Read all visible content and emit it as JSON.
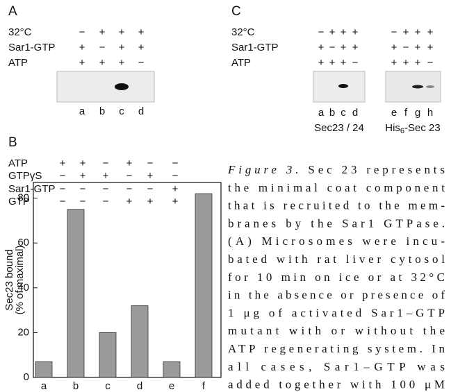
{
  "panel_a": {
    "label": "A",
    "rows": [
      {
        "label": "32°C",
        "marks": [
          "−",
          "+",
          "+",
          "+"
        ]
      },
      {
        "label": "Sar1-GTP",
        "marks": [
          "+",
          "−",
          "+",
          "+"
        ]
      },
      {
        "label": "ATP",
        "marks": [
          "+",
          "+",
          "+",
          "−"
        ]
      }
    ],
    "lanes": [
      "a",
      "b",
      "c",
      "d"
    ]
  },
  "panel_b": {
    "label": "B",
    "rows": [
      {
        "label": "ATP",
        "marks": [
          "+",
          "+",
          "−",
          "+",
          "−",
          "−"
        ]
      },
      {
        "label": "GTPγS",
        "marks": [
          "−",
          "+",
          "+",
          "−",
          "+",
          "−"
        ]
      },
      {
        "label": "Sar1-GTP",
        "marks": [
          "−",
          "−",
          "−",
          "−",
          "−",
          "+"
        ]
      },
      {
        "label": "GTP",
        "marks": [
          "−",
          "−",
          "−",
          "+",
          "+",
          "+"
        ]
      }
    ]
  },
  "chart_data": {
    "type": "bar",
    "categories": [
      "a",
      "b",
      "c",
      "d",
      "e",
      "f"
    ],
    "values": [
      7,
      75,
      20,
      32,
      7,
      82
    ],
    "color": "#9a9a9a",
    "y_label": [
      "Sec23 bound",
      "(% of maximal)"
    ],
    "ylim": [
      0,
      87
    ],
    "yticks": [
      0,
      20,
      40,
      60,
      80
    ]
  },
  "panel_c": {
    "label": "C",
    "rows": [
      {
        "label": "32°C",
        "marks": [
          "−",
          "+",
          "+",
          "+",
          "−",
          "+",
          "+",
          "+"
        ]
      },
      {
        "label": "Sar1-GTP",
        "marks": [
          "+",
          "−",
          "+",
          "+",
          "+",
          "−",
          "+",
          "+"
        ]
      },
      {
        "label": "ATP",
        "marks": [
          "+",
          "+",
          "+",
          "−",
          "+",
          "+",
          "+",
          "−"
        ]
      }
    ],
    "lanes": [
      "a",
      "b",
      "c",
      "d",
      "e",
      "f",
      "g",
      "h"
    ],
    "blot_labels": [
      [
        "Sec23 / 24"
      ],
      [
        "His",
        "6",
        "-Sec 23"
      ]
    ]
  },
  "caption": {
    "label": "Figure 3.",
    "lines": [
      " Sec 23 represents",
      "the minimal coat component",
      "that is recruited to the mem-",
      "branes by the Sar1 GTPase.",
      "(A) Microsomes were incu-",
      "bated with rat liver cytosol",
      "for 10 min on ice or at 32°C",
      "in the absence or presence of",
      "1 μg of activated Sar1–GTP",
      "mutant with or without the",
      "ATP regenerating system. In",
      "all cases, Sar1–GTP was",
      "added together with 100 μM"
    ]
  }
}
